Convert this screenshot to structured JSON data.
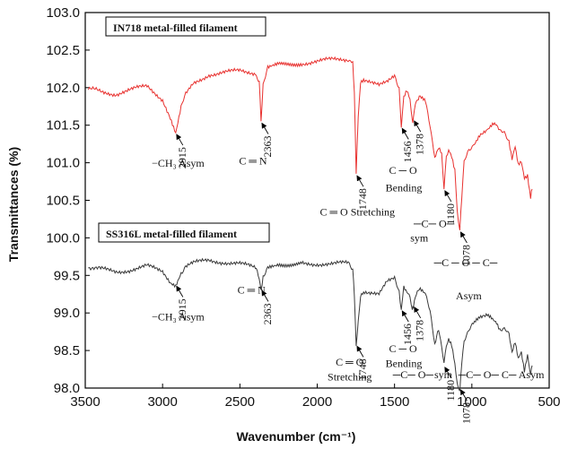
{
  "chart_data": {
    "type": "line",
    "xlabel": "Wavenumber (cm⁻¹)",
    "ylabel": "Transmittances (%)",
    "xlim": [
      3500,
      500
    ],
    "ylim": [
      98.0,
      103.0
    ],
    "x_ticks": [
      3500,
      3000,
      2500,
      2000,
      1500,
      1000,
      500
    ],
    "y_ticks": [
      98.0,
      98.5,
      99.0,
      99.5,
      100.0,
      100.5,
      101.0,
      101.5,
      102.0,
      102.5,
      103.0
    ],
    "grid": false,
    "series": [
      {
        "name": "IN718 metal-filled filament",
        "color": "#e8312f",
        "x": [
          3480,
          3400,
          3300,
          3200,
          3100,
          3000,
          2950,
          2915,
          2880,
          2850,
          2800,
          2700,
          2600,
          2500,
          2400,
          2375,
          2363,
          2350,
          2320,
          2250,
          2100,
          2000,
          1900,
          1800,
          1770,
          1760,
          1748,
          1735,
          1720,
          1700,
          1650,
          1600,
          1550,
          1500,
          1470,
          1456,
          1440,
          1420,
          1400,
          1385,
          1378,
          1365,
          1340,
          1300,
          1270,
          1240,
          1215,
          1195,
          1180,
          1165,
          1150,
          1130,
          1110,
          1095,
          1078,
          1065,
          1050,
          1020,
          990,
          950,
          900,
          860,
          840,
          820,
          790,
          760,
          740,
          720,
          700,
          680,
          660,
          640,
          620,
          610
        ],
        "y": [
          101.98,
          101.95,
          101.92,
          101.97,
          102.02,
          101.85,
          101.6,
          101.4,
          101.75,
          101.9,
          102.05,
          102.18,
          102.2,
          102.22,
          102.2,
          102.05,
          101.55,
          102.05,
          102.25,
          102.3,
          102.33,
          102.35,
          102.37,
          102.38,
          102.36,
          101.9,
          100.85,
          101.6,
          102.05,
          102.1,
          102.05,
          102.02,
          102.08,
          102.18,
          102.0,
          101.48,
          101.85,
          101.95,
          101.85,
          101.55,
          101.58,
          101.8,
          101.9,
          101.8,
          101.5,
          101.1,
          101.2,
          101.1,
          100.65,
          101.1,
          101.2,
          101.1,
          100.9,
          100.4,
          100.1,
          100.55,
          101.0,
          101.15,
          101.25,
          101.35,
          101.45,
          101.5,
          101.48,
          101.42,
          101.38,
          101.3,
          101.05,
          101.2,
          100.95,
          101.0,
          100.8,
          100.85,
          100.55,
          100.65
        ]
      },
      {
        "name": "SS316L metal-filled filament",
        "color": "#3a3a3a",
        "x": [
          3480,
          3400,
          3300,
          3200,
          3100,
          3000,
          2950,
          2915,
          2880,
          2850,
          2800,
          2700,
          2600,
          2500,
          2400,
          2375,
          2363,
          2350,
          2320,
          2250,
          2100,
          2000,
          1900,
          1800,
          1770,
          1760,
          1748,
          1735,
          1720,
          1700,
          1650,
          1600,
          1550,
          1500,
          1470,
          1456,
          1440,
          1420,
          1400,
          1385,
          1378,
          1365,
          1340,
          1300,
          1270,
          1240,
          1215,
          1195,
          1180,
          1165,
          1150,
          1130,
          1110,
          1095,
          1078,
          1065,
          1050,
          1020,
          990,
          950,
          900,
          860,
          840,
          820,
          790,
          760,
          740,
          720,
          700,
          680,
          660,
          640,
          620,
          610
        ],
        "y": [
          99.62,
          99.58,
          99.55,
          99.58,
          99.62,
          99.55,
          99.42,
          99.38,
          99.55,
          99.62,
          99.66,
          99.7,
          99.68,
          99.65,
          99.6,
          99.45,
          99.32,
          99.5,
          99.62,
          99.65,
          99.66,
          99.66,
          99.65,
          99.66,
          99.6,
          99.2,
          98.58,
          98.9,
          99.25,
          99.3,
          99.28,
          99.25,
          99.4,
          99.45,
          99.3,
          99.05,
          99.35,
          99.3,
          99.25,
          99.05,
          99.1,
          99.25,
          99.3,
          99.25,
          99.0,
          98.6,
          98.75,
          98.55,
          98.3,
          98.55,
          98.65,
          98.55,
          98.3,
          98.05,
          98.0,
          98.35,
          98.65,
          98.75,
          98.85,
          98.92,
          98.95,
          98.9,
          98.88,
          98.8,
          98.78,
          98.7,
          98.45,
          98.6,
          98.4,
          98.5,
          98.25,
          98.45,
          98.15,
          98.3
        ]
      }
    ],
    "annotations": [
      {
        "text": "2915",
        "x": 2915,
        "y": 101.4
      },
      {
        "text": "2363",
        "x": 2363,
        "y": 101.55
      },
      {
        "text": "1748",
        "x": 1748,
        "y": 100.85
      },
      {
        "text": "1456",
        "x": 1456,
        "y": 101.48
      },
      {
        "text": "1378",
        "x": 1378,
        "y": 101.58
      },
      {
        "text": "1180",
        "x": 1180,
        "y": 100.65
      },
      {
        "text": "1078",
        "x": 1078,
        "y": 100.1
      },
      {
        "text": "2915",
        "x": 2915,
        "y": 99.38
      },
      {
        "text": "2363",
        "x": 2363,
        "y": 99.32
      },
      {
        "text": "1748",
        "x": 1748,
        "y": 98.58
      },
      {
        "text": "1456",
        "x": 1456,
        "y": 99.05
      },
      {
        "text": "1378",
        "x": 1378,
        "y": 99.1
      },
      {
        "text": "1180",
        "x": 1180,
        "y": 98.3
      },
      {
        "text": "1078",
        "x": 1078,
        "y": 98.0
      }
    ],
    "labels": [
      {
        "text": "−CH₃ Asym",
        "x": 2900,
        "y": 100.95
      },
      {
        "text": "C ═ N",
        "x": 2415,
        "y": 100.98
      },
      {
        "text": "C ─ O",
        "x": 1445,
        "y": 100.85
      },
      {
        "text": "Bending",
        "x": 1440,
        "y": 100.62
      },
      {
        "text": "C ═ O Stretching",
        "x": 1740,
        "y": 100.3
      },
      {
        "text": "─C─ O─",
        "x": 1245,
        "y": 100.14
      },
      {
        "text": "sym",
        "x": 1340,
        "y": 99.95
      },
      {
        "text": "─C ─ O ─ C─",
        "x": 1040,
        "y": 99.62
      },
      {
        "text": "Asym",
        "x": 1020,
        "y": 99.18
      },
      {
        "text": "−CH₃ Asym",
        "x": 2900,
        "y": 98.9
      },
      {
        "text": "C ═ N",
        "x": 2425,
        "y": 99.26
      },
      {
        "text": "C ─ O",
        "x": 1445,
        "y": 98.48
      },
      {
        "text": "Bending",
        "x": 1440,
        "y": 98.28
      },
      {
        "text": "C ═ O",
        "x": 1790,
        "y": 98.3
      },
      {
        "text": "Stretching",
        "x": 1790,
        "y": 98.1
      },
      {
        "text": "─C─ O─",
        "x": 1380,
        "y": 98.13
      },
      {
        "text": "sym",
        "x": 1185,
        "y": 98.13
      },
      {
        "text": "─C─ O─ C─ Asym",
        "x": 810,
        "y": 98.13
      }
    ]
  }
}
